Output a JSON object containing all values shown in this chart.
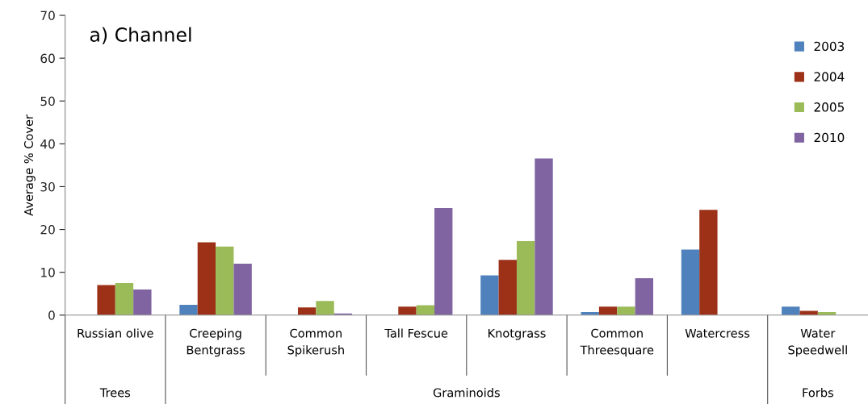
{
  "chart_data": {
    "type": "bar",
    "title": "a) Channel",
    "ylabel": "Average % Cover",
    "categories": [
      "Russian olive",
      "Creeping\nBentgrass",
      "Common\nSpikerush",
      "Tall Fescue",
      "Knotgrass",
      "Common\nThreesquare",
      "Watercress",
      "Water\nSpeedwell"
    ],
    "series": [
      {
        "name": "2003",
        "color": "#4f81bd",
        "values": [
          0,
          2.4,
          0,
          0,
          9.3,
          0.7,
          15.3,
          2.0
        ]
      },
      {
        "name": "2004",
        "color": "#9c3118",
        "values": [
          7.0,
          17.0,
          1.8,
          2.0,
          12.9,
          2.0,
          24.6,
          1.0
        ]
      },
      {
        "name": "2005",
        "color": "#9bbb59",
        "values": [
          7.5,
          16.0,
          3.3,
          2.3,
          17.3,
          2.0,
          0,
          0.7
        ]
      },
      {
        "name": "2010",
        "color": "#8064a2",
        "values": [
          6.0,
          12.0,
          0.4,
          25.0,
          36.6,
          8.6,
          0,
          0
        ]
      }
    ],
    "ylim": [
      0,
      70
    ],
    "yticks": [
      0,
      10,
      20,
      30,
      40,
      50,
      60,
      70
    ],
    "annotations": [
      "Trees",
      "Graminoids",
      "Forbs"
    ],
    "legend": "top right",
    "grid": false
  }
}
